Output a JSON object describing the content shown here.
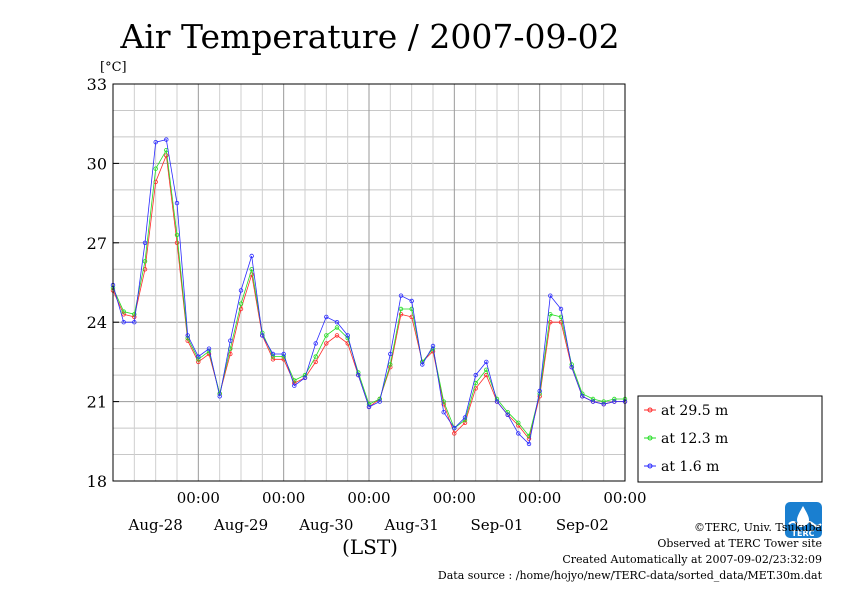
{
  "chart_data": {
    "type": "line",
    "title": "Air Temperature / 2007-09-02",
    "ylabel": "[°C]",
    "xlabel": "(LST)",
    "ylim": [
      18,
      33
    ],
    "yticks": [
      18,
      21,
      24,
      27,
      30,
      33
    ],
    "x_range_hours": [
      0,
      144
    ],
    "xtick_labels": [
      {
        "time": "00:00",
        "date": "Aug-28"
      },
      {
        "time": "00:00",
        "date": "Aug-29"
      },
      {
        "time": "00:00",
        "date": "Aug-30"
      },
      {
        "time": "00:00",
        "date": "Aug-31"
      },
      {
        "time": "00:00",
        "date": "Sep-01"
      },
      {
        "time": "00:00",
        "date": "Sep-02"
      }
    ],
    "grid": true,
    "legend_position": "right",
    "series": [
      {
        "name": "at 29.5 m",
        "color": "#ff2a2a",
        "x": [
          0,
          3,
          6,
          9,
          12,
          15,
          18,
          21,
          24,
          27,
          30,
          33,
          36,
          39,
          42,
          45,
          48,
          51,
          54,
          57,
          60,
          63,
          66,
          69,
          72,
          75,
          78,
          81,
          84,
          87,
          90,
          93,
          96,
          99,
          102,
          105,
          108,
          111,
          114,
          117,
          120,
          123,
          126,
          129,
          132,
          135,
          138,
          141,
          144
        ],
        "y": [
          25.2,
          24.3,
          24.2,
          26.0,
          29.3,
          30.3,
          27.0,
          23.3,
          22.5,
          22.8,
          21.3,
          22.8,
          24.5,
          25.8,
          23.5,
          22.6,
          22.6,
          21.7,
          21.9,
          22.5,
          23.2,
          23.5,
          23.2,
          22.0,
          20.8,
          21.1,
          22.3,
          24.3,
          24.2,
          22.5,
          22.9,
          20.9,
          19.8,
          20.2,
          21.5,
          22.0,
          21.0,
          20.5,
          20.1,
          19.6,
          21.2,
          24.0,
          24.0,
          22.3,
          21.2,
          21.0,
          20.9,
          21.0,
          21.0
        ]
      },
      {
        "name": "at 12.3 m",
        "color": "#22dd22",
        "x": [
          0,
          3,
          6,
          9,
          12,
          15,
          18,
          21,
          24,
          27,
          30,
          33,
          36,
          39,
          42,
          45,
          48,
          51,
          54,
          57,
          60,
          63,
          66,
          69,
          72,
          75,
          78,
          81,
          84,
          87,
          90,
          93,
          96,
          99,
          102,
          105,
          108,
          111,
          114,
          117,
          120,
          123,
          126,
          129,
          132,
          135,
          138,
          141,
          144
        ],
        "y": [
          25.3,
          24.4,
          24.3,
          26.3,
          29.8,
          30.5,
          27.3,
          23.4,
          22.6,
          22.9,
          21.3,
          23.0,
          24.7,
          26.0,
          23.6,
          22.7,
          22.7,
          21.8,
          22.0,
          22.7,
          23.5,
          23.8,
          23.4,
          22.1,
          20.9,
          21.1,
          22.4,
          24.5,
          24.5,
          22.5,
          23.0,
          21.0,
          20.0,
          20.3,
          21.7,
          22.2,
          21.1,
          20.6,
          20.2,
          19.7,
          21.3,
          24.3,
          24.2,
          22.4,
          21.3,
          21.1,
          21.0,
          21.1,
          21.1
        ]
      },
      {
        "name": "at 1.6 m",
        "color": "#2a2aff",
        "x": [
          0,
          3,
          6,
          9,
          12,
          15,
          18,
          21,
          24,
          27,
          30,
          33,
          36,
          39,
          42,
          45,
          48,
          51,
          54,
          57,
          60,
          63,
          66,
          69,
          72,
          75,
          78,
          81,
          84,
          87,
          90,
          93,
          96,
          99,
          102,
          105,
          108,
          111,
          114,
          117,
          120,
          123,
          126,
          129,
          132,
          135,
          138,
          141,
          144
        ],
        "y": [
          25.4,
          24.0,
          24.0,
          27.0,
          30.8,
          30.9,
          28.5,
          23.5,
          22.7,
          23.0,
          21.2,
          23.3,
          25.2,
          26.5,
          23.5,
          22.8,
          22.8,
          21.6,
          21.9,
          23.2,
          24.2,
          24.0,
          23.5,
          22.0,
          20.8,
          21.0,
          22.8,
          25.0,
          24.8,
          22.4,
          23.1,
          20.6,
          20.0,
          20.4,
          22.0,
          22.5,
          21.0,
          20.5,
          19.8,
          19.4,
          21.4,
          25.0,
          24.5,
          22.3,
          21.2,
          21.0,
          20.9,
          21.0,
          21.0
        ]
      }
    ]
  },
  "footer": {
    "copyright": "©TERC, Univ. Tsukuba",
    "observed": "Observed at TERC Tower site",
    "created": "Created Automatically at 2007-09-02/23:32:09",
    "source": "Data source : /home/hojyo/new/TERC-data/sorted_data/MET.30m.dat"
  },
  "logo": {
    "text": "TERC",
    "color": "#1a7fd0"
  }
}
